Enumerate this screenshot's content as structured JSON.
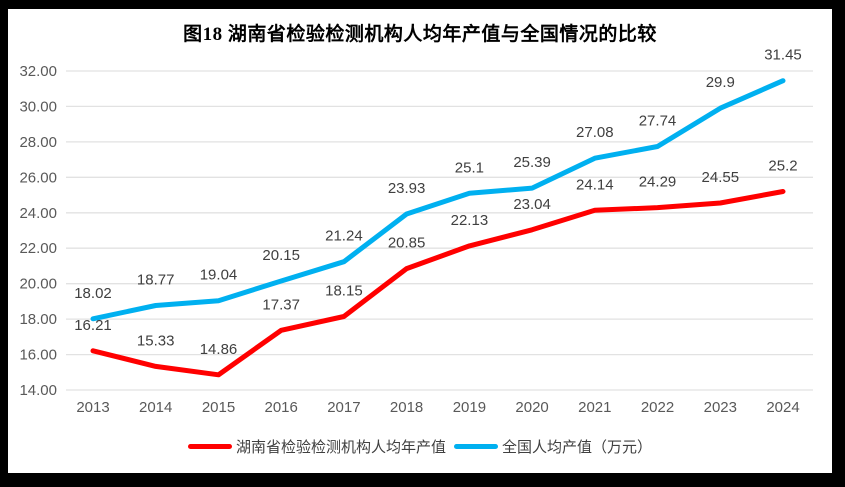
{
  "frame": {
    "border_color": "#000000",
    "page_background": "#ffffff"
  },
  "chart_data": {
    "type": "line",
    "title": "图18 湖南省检验检测机构人均年产值与全国情况的比较",
    "categories": [
      "2013",
      "2014",
      "2015",
      "2016",
      "2017",
      "2018",
      "2019",
      "2020",
      "2021",
      "2022",
      "2023",
      "2024"
    ],
    "series": [
      {
        "id": "hunan",
        "name": "湖南省检验检测机构人均年产值",
        "color": "#ff0000",
        "values": [
          16.21,
          15.33,
          14.86,
          17.37,
          18.15,
          20.85,
          22.13,
          23.04,
          24.14,
          24.29,
          24.55,
          25.2
        ],
        "labels": [
          "16.21",
          "15.33",
          "14.86",
          "17.37",
          "18.15",
          "20.85",
          "22.13",
          "23.04",
          "24.14",
          "24.29",
          "24.55",
          "25.2"
        ]
      },
      {
        "id": "national",
        "name": "全国人均产值（万元）",
        "color": "#00b0f0",
        "values": [
          18.02,
          18.77,
          19.04,
          20.15,
          21.24,
          23.93,
          25.1,
          25.39,
          27.08,
          27.74,
          29.9,
          31.45
        ],
        "labels": [
          "18.02",
          "18.77",
          "19.04",
          "20.15",
          "21.24",
          "23.93",
          "25.1",
          "25.39",
          "27.08",
          "27.74",
          "29.9",
          "31.45"
        ]
      }
    ],
    "xlabel": "",
    "ylabel": "",
    "ylim": [
      14,
      32
    ],
    "ytick_step": 2,
    "ytick_labels": [
      "32.00",
      "30.00",
      "28.00",
      "26.00",
      "24.00",
      "22.00",
      "20.00",
      "18.00",
      "16.00",
      "14.00"
    ],
    "grid": true,
    "legend_position": "bottom",
    "data_labels": true
  },
  "style": {
    "grid_color": "#e2e2e2",
    "tick_label_color": "#595959",
    "data_label_color": "#404040",
    "title_color": "#000000",
    "series_line_width": 5
  }
}
